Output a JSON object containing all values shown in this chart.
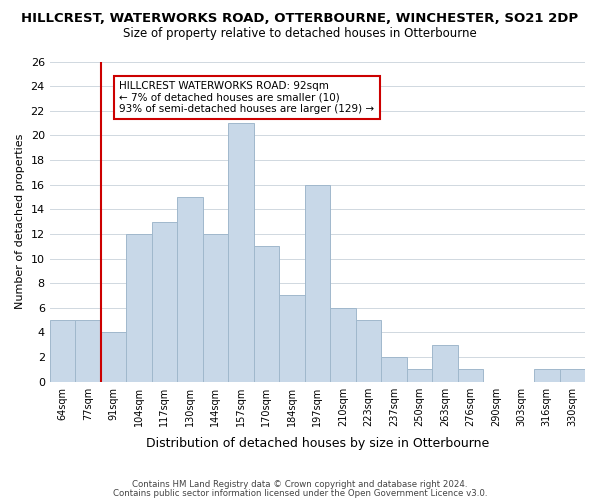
{
  "title1": "HILLCREST, WATERWORKS ROAD, OTTERBOURNE, WINCHESTER, SO21 2DP",
  "title2": "Size of property relative to detached houses in Otterbourne",
  "xlabel": "Distribution of detached houses by size in Otterbourne",
  "ylabel": "Number of detached properties",
  "bin_labels": [
    "64sqm",
    "77sqm",
    "91sqm",
    "104sqm",
    "117sqm",
    "130sqm",
    "144sqm",
    "157sqm",
    "170sqm",
    "184sqm",
    "197sqm",
    "210sqm",
    "223sqm",
    "237sqm",
    "250sqm",
    "263sqm",
    "276sqm",
    "290sqm",
    "303sqm",
    "316sqm",
    "330sqm"
  ],
  "bar_heights": [
    5,
    5,
    4,
    12,
    13,
    15,
    12,
    21,
    11,
    7,
    16,
    6,
    5,
    2,
    1,
    3,
    1,
    0,
    0,
    1,
    1
  ],
  "bar_color": "#c8d8e8",
  "bar_edge_color": "#a0b8cc",
  "vline_color": "#cc0000",
  "vline_x": 2.5,
  "annotation_title": "HILLCREST WATERWORKS ROAD: 92sqm",
  "annotation_line1": "← 7% of detached houses are smaller (10)",
  "annotation_line2": "93% of semi-detached houses are larger (129) →",
  "annotation_box_color": "#ffffff",
  "annotation_box_edge": "#cc0000",
  "ylim": [
    0,
    26
  ],
  "yticks": [
    0,
    2,
    4,
    6,
    8,
    10,
    12,
    14,
    16,
    18,
    20,
    22,
    24,
    26
  ],
  "footer1": "Contains HM Land Registry data © Crown copyright and database right 2024.",
  "footer2": "Contains public sector information licensed under the Open Government Licence v3.0.",
  "background_color": "#ffffff",
  "grid_color": "#d0d8e0"
}
